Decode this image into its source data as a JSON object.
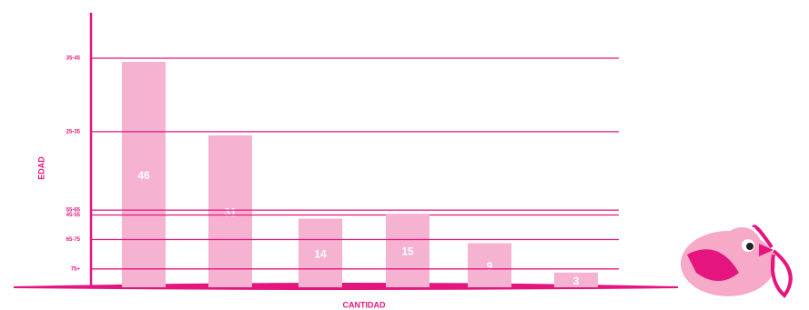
{
  "chart_data": {
    "type": "bar",
    "x_label": "CANTIDAD",
    "y_label": "EDAD",
    "categories": [
      "35-45",
      "25-35",
      "45-55",
      "55-65",
      "65-75",
      "75+"
    ],
    "values": [
      46,
      31,
      14,
      15,
      9,
      3
    ],
    "color": "#f5b3d1",
    "axis_color": "#e5157f",
    "grid": true
  }
}
